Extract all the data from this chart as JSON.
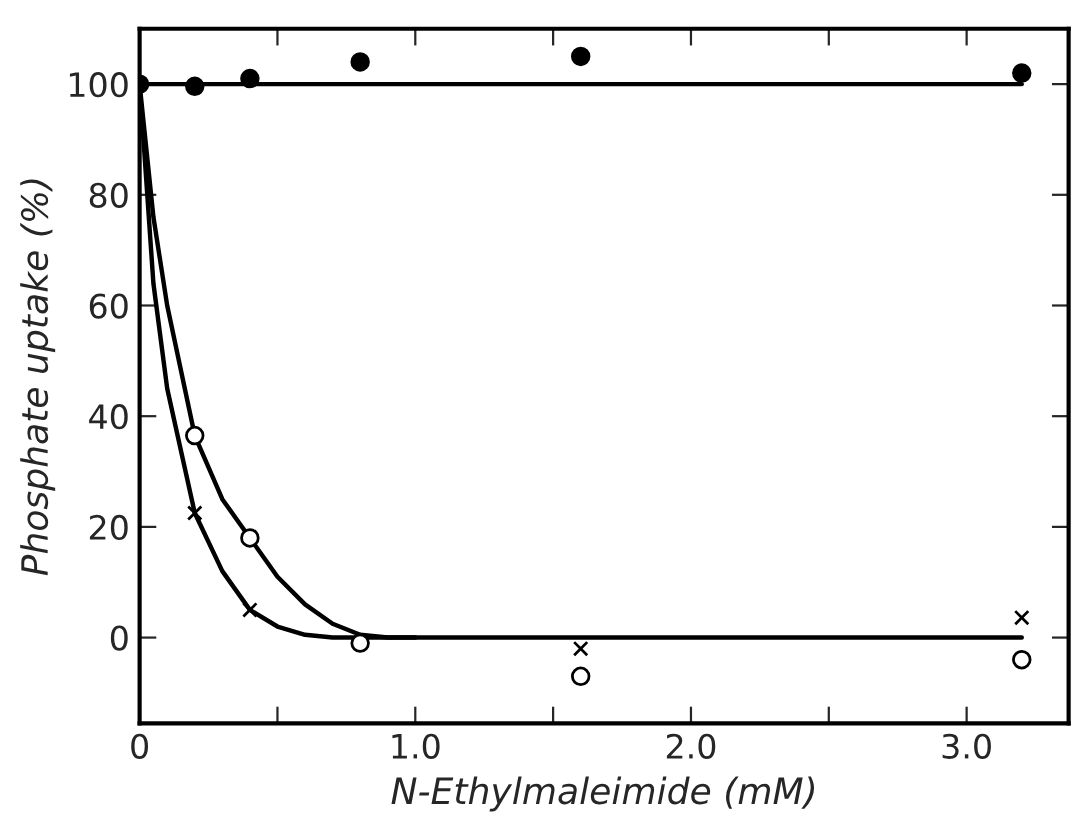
{
  "chart_data": {
    "type": "scatter",
    "xlabel": "N-Ethylmaleimide (mM)",
    "ylabel": "Phosphate uptake (%)",
    "xlim": [
      0,
      3.37
    ],
    "ylim": [
      -15.5,
      110
    ],
    "xticks": [
      0,
      {
        "value": 0.5,
        "label": null
      },
      {
        "value": 1.0,
        "label": "1.0"
      },
      {
        "value": 1.5,
        "label": null
      },
      {
        "value": 2.0,
        "label": "2.0"
      },
      {
        "value": 2.5,
        "label": null
      },
      {
        "value": 3.0,
        "label": "3.0"
      }
    ],
    "yticks": [
      0,
      20,
      40,
      60,
      80,
      100
    ],
    "grid": false,
    "series": [
      {
        "type": "line",
        "color": "#000000",
        "marker": "none",
        "line_style": "solid",
        "x": [
          0,
          3.2
        ],
        "values": [
          100,
          100
        ]
      },
      {
        "type": "line",
        "color": "#000000",
        "marker": "none",
        "line_style": "solid",
        "x": [
          0,
          0.05,
          0.1,
          0.2,
          0.3,
          0.4,
          0.5,
          0.6,
          0.7,
          0.8,
          0.9,
          1.0,
          3.2
        ],
        "values": [
          100,
          76,
          60,
          36.5,
          25,
          18,
          11,
          6,
          2.5,
          0.5,
          0,
          0,
          0
        ]
      },
      {
        "type": "line",
        "color": "#000000",
        "marker": "none",
        "line_style": "solid",
        "x": [
          0,
          0.05,
          0.1,
          0.2,
          0.3,
          0.4,
          0.5,
          0.6,
          0.7,
          0.8,
          1.0
        ],
        "values": [
          100,
          64,
          45,
          22.5,
          12,
          5,
          2,
          0.5,
          0,
          0,
          0
        ]
      },
      {
        "color": "#000000",
        "marker": "circle",
        "x": [
          0,
          0.2,
          0.4,
          0.8,
          1.6,
          3.2
        ],
        "values": [
          100,
          99.6,
          101,
          104,
          105,
          102
        ]
      },
      {
        "color": "#ffffff",
        "marker": "circle",
        "x": [
          0.2,
          0.4,
          0.8,
          1.6,
          3.2
        ],
        "values": [
          36.5,
          18,
          -1,
          -7,
          -4
        ]
      },
      {
        "color": "#000000",
        "marker": "cross",
        "x": [
          0.2,
          0.4,
          1.6,
          3.2
        ],
        "values": [
          22.5,
          5,
          -2,
          3.6
        ]
      }
    ]
  }
}
